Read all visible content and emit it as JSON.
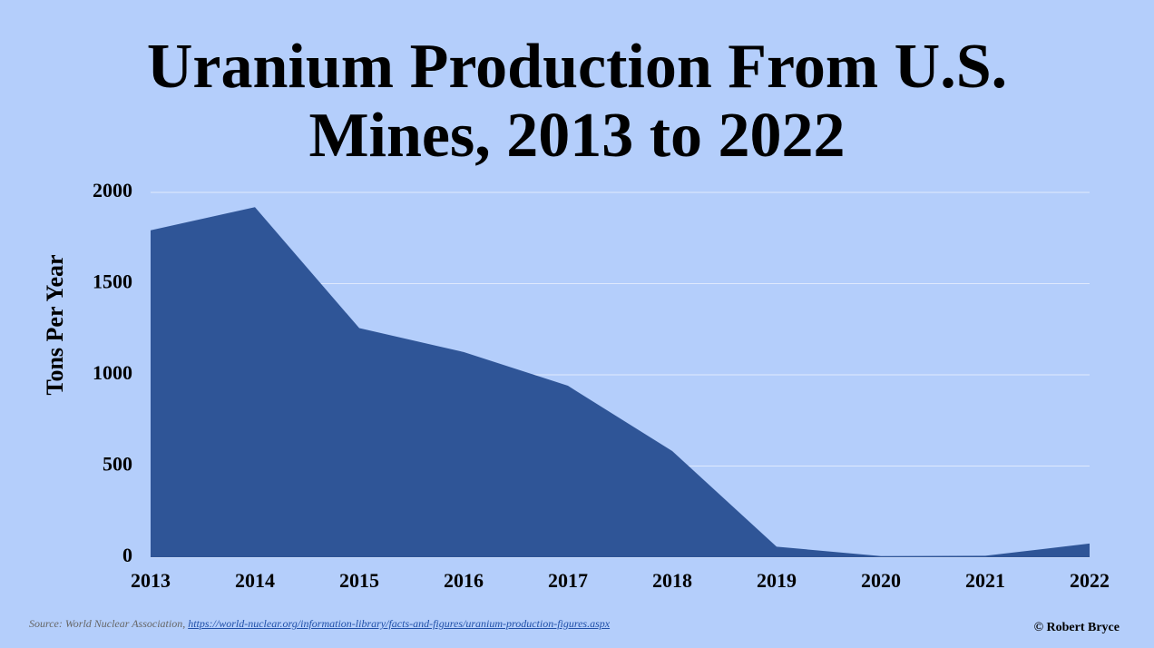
{
  "chart_data": {
    "type": "area",
    "title": "Uranium Production From U.S. Mines, 2013 to 2022",
    "y_label": "Tons Per Year",
    "x": [
      2013,
      2014,
      2015,
      2016,
      2017,
      2018,
      2019,
      2020,
      2021,
      2022
    ],
    "values": [
      1792,
      1919,
      1256,
      1125,
      940,
      582,
      58,
      6,
      8,
      75
    ],
    "color": "#2f5597",
    "xlim": [
      2013,
      2022
    ],
    "xticks": [
      2013,
      2014,
      2015,
      2016,
      2017,
      2018,
      2019,
      2020,
      2021,
      2022
    ],
    "ylim": [
      0,
      2000
    ],
    "yticks": [
      0,
      500,
      1000,
      1500,
      2000
    ],
    "grid": true,
    "source_label": "Source: World Nuclear Association,",
    "source_url": "https://world-nuclear.org/information-library/facts-and-figures/uranium-production-figures.aspx",
    "credit": "© Robert Bryce"
  }
}
